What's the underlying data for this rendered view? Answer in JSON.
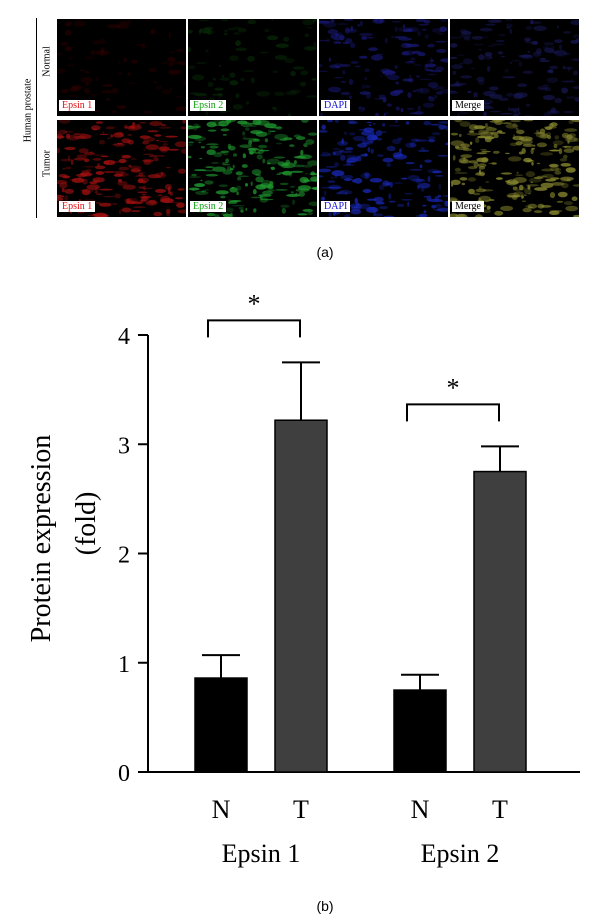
{
  "panel_a": {
    "side_label": "Human prostate",
    "rows": [
      {
        "label": "Normal",
        "tiles": [
          {
            "label": "Epsin 1",
            "label_color": "#e01010",
            "tint": "#3a0000",
            "intensity": 0.05
          },
          {
            "label": "Epsin 2",
            "label_color": "#12a012",
            "tint": "#0a3a0a",
            "intensity": 0.06
          },
          {
            "label": "DAPI",
            "label_color": "#1010d0",
            "tint": "#1a1a80",
            "intensity": 0.35
          },
          {
            "label": "Merge",
            "label_color": "#000000",
            "tint": "#1a1a60",
            "intensity": 0.3
          }
        ]
      },
      {
        "label": "Tumor",
        "tiles": [
          {
            "label": "Epsin 1",
            "label_color": "#e01010",
            "tint": "#a01010",
            "intensity": 0.55
          },
          {
            "label": "Epsin 2",
            "label_color": "#12a012",
            "tint": "#209a30",
            "intensity": 0.55
          },
          {
            "label": "DAPI",
            "label_color": "#1010d0",
            "tint": "#1a2ac0",
            "intensity": 0.45
          },
          {
            "label": "Merge",
            "label_color": "#000000",
            "tint": "#8a8a30",
            "intensity": 0.6
          }
        ]
      }
    ],
    "caption": "(a)"
  },
  "panel_b": {
    "caption": "(b)"
  },
  "chart_data": {
    "type": "bar",
    "groups": [
      {
        "label": "Epsin 1",
        "bars": [
          {
            "category": "N",
            "value": 0.86,
            "error": 0.21,
            "color": "#000000"
          },
          {
            "category": "T",
            "value": 3.22,
            "error": 0.53,
            "color": "#3f3f3f"
          }
        ],
        "significance": "*"
      },
      {
        "label": "Epsin 2",
        "bars": [
          {
            "category": "N",
            "value": 0.75,
            "error": 0.14,
            "color": "#000000"
          },
          {
            "category": "T",
            "value": 2.75,
            "error": 0.23,
            "color": "#3f3f3f"
          }
        ],
        "significance": "*"
      }
    ],
    "ylabel_line1": "Protein expression",
    "ylabel_line2": "(fold)",
    "ylim": [
      0,
      4
    ],
    "yticks": [
      "0",
      "1",
      "2",
      "3",
      "4"
    ],
    "grid": false,
    "legend": "none"
  }
}
